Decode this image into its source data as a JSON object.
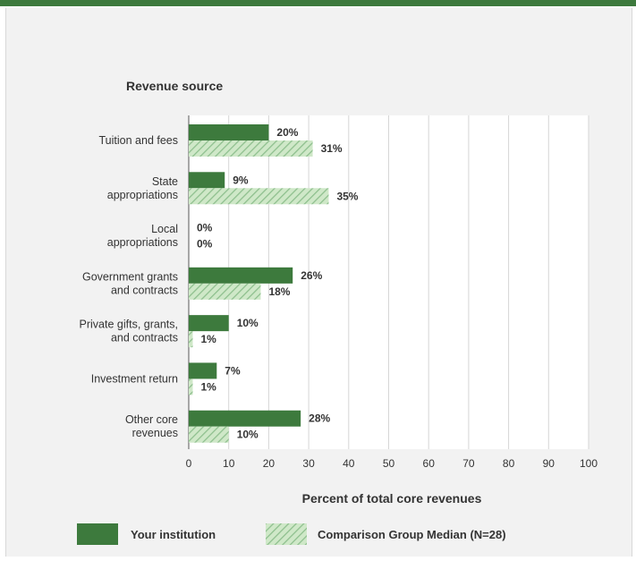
{
  "chart_data": {
    "type": "bar",
    "orientation": "horizontal",
    "header": "Revenue source",
    "categories": [
      [
        "Tuition and fees"
      ],
      [
        "State",
        "appropriations"
      ],
      [
        "Local",
        "appropriations"
      ],
      [
        "Government grants",
        "and contracts"
      ],
      [
        "Private gifts, grants,",
        "and contracts"
      ],
      [
        "Investment return"
      ],
      [
        "Other core",
        "revenues"
      ]
    ],
    "series": [
      {
        "name": "Your institution",
        "values": [
          20,
          9,
          0,
          26,
          10,
          7,
          28
        ]
      },
      {
        "name": "Comparison Group Median (N=28)",
        "values": [
          31,
          35,
          0,
          18,
          1,
          1,
          10
        ]
      }
    ],
    "data_labels": [
      [
        "20%",
        "9%",
        "0%",
        "26%",
        "10%",
        "7%",
        "28%"
      ],
      [
        "31%",
        "35%",
        "0%",
        "18%",
        "1%",
        "1%",
        "10%"
      ]
    ],
    "xlabel": "Percent of total core revenues",
    "xticks": [
      "0",
      "10",
      "20",
      "30",
      "40",
      "50",
      "60",
      "70",
      "80",
      "90",
      "100"
    ],
    "xlim": [
      0,
      100
    ],
    "grid": true,
    "legend_position": "bottom",
    "colors": {
      "series1": "#3d7a3d",
      "series2_base": "#cfe8c8",
      "series2_hatch": "#8dbf8d",
      "plot_bg": "#ffffff",
      "panel_bg": "#f2f2f2",
      "grid": "#d6d6d6",
      "top_bar": "#3d7a3d"
    }
  }
}
